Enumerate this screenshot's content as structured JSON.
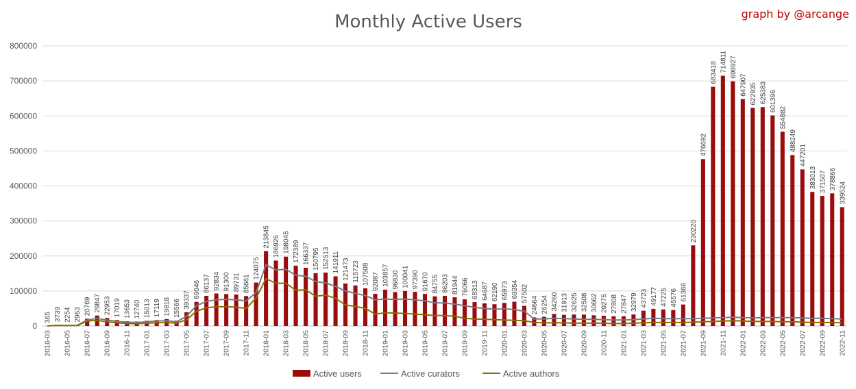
{
  "chart_data": {
    "type": "bar",
    "title": "Monthly Active Users",
    "credit": "graph by @arcange",
    "ylim": [
      0,
      800000
    ],
    "yticks": [
      0,
      100000,
      200000,
      300000,
      400000,
      500000,
      600000,
      700000,
      800000
    ],
    "ytick_labels": [
      "0",
      "100000",
      "200000",
      "300000",
      "400000",
      "500000",
      "600000",
      "700000",
      "800000"
    ],
    "grid": true,
    "legend_position": "bottom",
    "colors": {
      "users": "#9b0d0d",
      "curators": "#7a7a86",
      "authors": "#8a6d00",
      "gridline": "#d9d9d9",
      "credit": "#c00000"
    },
    "x": [
      "2016-03",
      "2016-04",
      "2016-05",
      "2016-06",
      "2016-07",
      "2016-08",
      "2016-09",
      "2016-10",
      "2016-11",
      "2016-12",
      "2017-01",
      "2017-02",
      "2017-03",
      "2017-04",
      "2017-05",
      "2017-06",
      "2017-07",
      "2017-08",
      "2017-09",
      "2017-10",
      "2017-11",
      "2017-12",
      "2018-01",
      "2018-02",
      "2018-03",
      "2018-04",
      "2018-05",
      "2018-06",
      "2018-07",
      "2018-08",
      "2018-09",
      "2018-10",
      "2018-11",
      "2018-12",
      "2019-01",
      "2019-02",
      "2019-03",
      "2019-04",
      "2019-05",
      "2019-06",
      "2019-07",
      "2019-08",
      "2019-09",
      "2019-10",
      "2019-11",
      "2019-12",
      "2020-01",
      "2020-02",
      "2020-03",
      "2020-04",
      "2020-05",
      "2020-06",
      "2020-07",
      "2020-08",
      "2020-09",
      "2020-10",
      "2020-11",
      "2020-12",
      "2021-01",
      "2021-02",
      "2021-03",
      "2021-04",
      "2021-05",
      "2021-06",
      "2021-07",
      "2021-08",
      "2021-09",
      "2021-10",
      "2021-11",
      "2021-12",
      "2022-01",
      "2022-02",
      "2022-03",
      "2022-04",
      "2022-05",
      "2022-06",
      "2022-07",
      "2022-08",
      "2022-09",
      "2022-10",
      "2022-11"
    ],
    "x_tick_labels": [
      "2016-03",
      "",
      "2016-05",
      "",
      "2016-07",
      "",
      "2016-09",
      "",
      "2016-11",
      "",
      "2017-01",
      "",
      "2017-03",
      "",
      "2017-05",
      "",
      "2017-07",
      "",
      "2017-09",
      "",
      "2017-11",
      "",
      "2018-01",
      "",
      "2018-03",
      "",
      "2018-05",
      "",
      "2018-07",
      "",
      "2018-09",
      "",
      "2018-11",
      "",
      "2019-01",
      "",
      "2019-03",
      "",
      "2019-05",
      "",
      "2019-07",
      "",
      "2019-09",
      "",
      "2019-11",
      "",
      "2020-01",
      "",
      "2020-03",
      "",
      "2020-05",
      "",
      "2020-07",
      "",
      "2020-09",
      "",
      "2020-11",
      "",
      "2021-01",
      "",
      "2021-03",
      "",
      "2021-05",
      "",
      "2021-07",
      "",
      "2021-09",
      "",
      "2021-11",
      "",
      "2022-01",
      "",
      "2022-03",
      "",
      "2022-05",
      "",
      "2022-07",
      "",
      "2022-09",
      "",
      "2022-11"
    ],
    "series": [
      {
        "name": "Active users",
        "type": "bar",
        "values": [
          365,
          3739,
          2254,
          2963,
          20769,
          29847,
          22953,
          17019,
          13653,
          12740,
          15013,
          17119,
          19818,
          15566,
          39337,
          69046,
          86137,
          92834,
          91300,
          89731,
          85661,
          124075,
          213845,
          186926,
          198045,
          172389,
          166337,
          150795,
          152513,
          141911,
          121473,
          115723,
          107508,
          92087,
          103857,
          96830,
          100041,
          97390,
          91670,
          84755,
          86203,
          81944,
          76066,
          68313,
          64687,
          62190,
          65973,
          69354,
          57502,
          24664,
          26254,
          34260,
          31913,
          32625,
          32508,
          30662,
          29275,
          27808,
          27847,
          32979,
          43723,
          49177,
          47225,
          45576,
          61366,
          230220,
          476692,
          683418,
          714811,
          698927,
          647907,
          622935,
          625383,
          601396,
          554882,
          488249,
          447201,
          383013,
          371507,
          378866,
          339524
        ]
      },
      {
        "name": "Active curators",
        "type": "line",
        "values": [
          300,
          2000,
          1500,
          2000,
          17000,
          22000,
          17000,
          13000,
          11000,
          10000,
          12000,
          14000,
          15000,
          12000,
          28000,
          58000,
          70000,
          75000,
          76000,
          75000,
          72000,
          95000,
          175000,
          160000,
          162000,
          145000,
          142000,
          127000,
          123000,
          113000,
          100000,
          93000,
          87000,
          75000,
          77000,
          76000,
          77000,
          75000,
          72000,
          66000,
          66000,
          62000,
          58000,
          53000,
          50000,
          48000,
          49000,
          47000,
          42000,
          20000,
          20000,
          22000,
          21000,
          20000,
          19000,
          19000,
          18000,
          17000,
          17000,
          18000,
          20000,
          22000,
          21000,
          21000,
          21000,
          21000,
          22000,
          23000,
          24000,
          25000,
          24000,
          23000,
          24000,
          24000,
          24000,
          24000,
          23000,
          22000,
          22000,
          21000,
          20000
        ]
      },
      {
        "name": "Active authors",
        "type": "line",
        "values": [
          200,
          1500,
          1000,
          1500,
          14000,
          16000,
          12000,
          9000,
          7000,
          6000,
          8000,
          9000,
          10000,
          8000,
          18000,
          42000,
          52000,
          55000,
          55000,
          54000,
          50000,
          80000,
          135000,
          122000,
          122000,
          102000,
          103000,
          85000,
          88000,
          79000,
          60000,
          56000,
          50000,
          34000,
          38000,
          37000,
          36000,
          34000,
          32000,
          30000,
          30000,
          28000,
          22000,
          20000,
          19000,
          18000,
          17000,
          16000,
          15000,
          10000,
          9000,
          9000,
          9000,
          8000,
          8000,
          8000,
          8000,
          7000,
          7000,
          8000,
          9000,
          10000,
          10000,
          10000,
          10000,
          11000,
          12000,
          13000,
          14000,
          15000,
          14000,
          13000,
          13000,
          13000,
          12000,
          12000,
          11000,
          10000,
          10000,
          10000,
          9000
        ]
      }
    ],
    "data_labels": [
      "365",
      "3739",
      "2254",
      "2963",
      "20769",
      "29847",
      "22953",
      "17019",
      "13653",
      "12740",
      "15013",
      "17119",
      "19818",
      "15566",
      "39337",
      "69046",
      "86137",
      "92834",
      "91300",
      "89731",
      "85661",
      "124075",
      "213845",
      "186926",
      "198045",
      "172389",
      "166337",
      "150795",
      "152513",
      "141911",
      "121473",
      "115723",
      "107508",
      "92087",
      "103857",
      "96830",
      "100041",
      "97390",
      "91670",
      "84755",
      "86203",
      "81944",
      "76066",
      "68313",
      "64687",
      "62190",
      "65973",
      "69354",
      "57502",
      "24664",
      "26254",
      "34260",
      "31913",
      "32625",
      "32508",
      "30662",
      "29275",
      "27808",
      "27847",
      "32979",
      "43723",
      "49177",
      "47225",
      "45576",
      "61366",
      "230220",
      "476692",
      "683418",
      "714811",
      "698927",
      "647907",
      "622935",
      "625383",
      "601396",
      "554882",
      "488249",
      "447201",
      "383013",
      "371507",
      "378866",
      "339524"
    ]
  }
}
